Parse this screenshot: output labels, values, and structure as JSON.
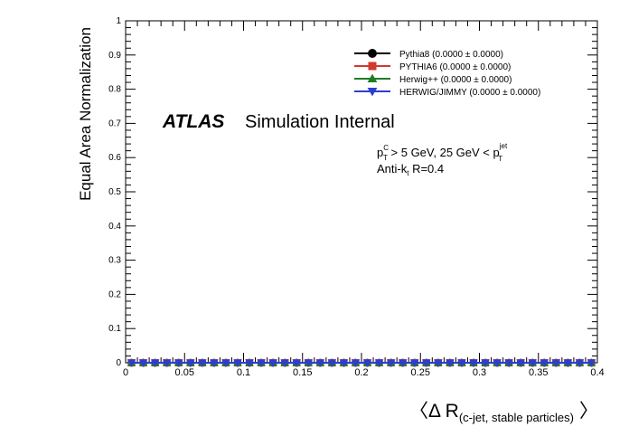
{
  "chart_data": {
    "type": "line",
    "title": "",
    "xlabel_main": "〈Δ R",
    "xlabel_sub": "(c-jet, stable particles)",
    "xlabel_close": "〉",
    "ylabel": "Equal Area Normalization",
    "xlim": [
      0,
      0.4
    ],
    "ylim": [
      0,
      1
    ],
    "x_ticks": [
      0,
      0.05,
      0.1,
      0.15,
      0.2,
      0.25,
      0.3,
      0.35,
      0.4
    ],
    "x_tick_labels": [
      "0",
      "0.05",
      "0.1",
      "0.15",
      "0.2",
      "0.25",
      "0.3",
      "0.35",
      "0.4"
    ],
    "y_ticks": [
      0,
      0.1,
      0.2,
      0.3,
      0.4,
      0.5,
      0.6,
      0.7,
      0.8,
      0.9,
      1
    ],
    "y_tick_labels": [
      "0",
      "0.1",
      "0.2",
      "0.3",
      "0.4",
      "0.5",
      "0.6",
      "0.7",
      "0.8",
      "0.9",
      "1"
    ],
    "grid": false,
    "legend_position": "top-right",
    "x": [
      0.0,
      0.01,
      0.02,
      0.03,
      0.04,
      0.05,
      0.06,
      0.07,
      0.08,
      0.09,
      0.1,
      0.11,
      0.12,
      0.13,
      0.14,
      0.15,
      0.16,
      0.17,
      0.18,
      0.19,
      0.2,
      0.21,
      0.22,
      0.23,
      0.24,
      0.25,
      0.26,
      0.27,
      0.28,
      0.29,
      0.3,
      0.31,
      0.32,
      0.33,
      0.34,
      0.35,
      0.36,
      0.37,
      0.38,
      0.39
    ],
    "series": [
      {
        "name": "Pythia8 (0.0000 ± 0.0000)",
        "color": "#000000",
        "marker": "circle",
        "values": [
          0,
          0,
          0,
          0,
          0,
          0,
          0,
          0,
          0,
          0,
          0,
          0,
          0,
          0,
          0,
          0,
          0,
          0,
          0,
          0,
          0,
          0,
          0,
          0,
          0,
          0,
          0,
          0,
          0,
          0,
          0,
          0,
          0,
          0,
          0,
          0,
          0,
          0,
          0,
          0
        ]
      },
      {
        "name": "PYTHIA6 (0.0000 ± 0.0000)",
        "color": "#d03a2e",
        "marker": "square",
        "values": [
          0,
          0,
          0,
          0,
          0,
          0,
          0,
          0,
          0,
          0,
          0,
          0,
          0,
          0,
          0,
          0,
          0,
          0,
          0,
          0,
          0,
          0,
          0,
          0,
          0,
          0,
          0,
          0,
          0,
          0,
          0,
          0,
          0,
          0,
          0,
          0,
          0,
          0,
          0,
          0
        ]
      },
      {
        "name": "Herwig++ (0.0000 ± 0.0000)",
        "color": "#1e7d22",
        "marker": "triangle-up",
        "values": [
          0,
          0,
          0,
          0,
          0,
          0,
          0,
          0,
          0,
          0,
          0,
          0,
          0,
          0,
          0,
          0,
          0,
          0,
          0,
          0,
          0,
          0,
          0,
          0,
          0,
          0,
          0,
          0,
          0,
          0,
          0,
          0,
          0,
          0,
          0,
          0,
          0,
          0,
          0,
          0
        ]
      },
      {
        "name": "HERWIG/JIMMY (0.0000 ± 0.0000)",
        "color": "#2c3ed1",
        "marker": "triangle-down",
        "values": [
          0,
          0,
          0,
          0,
          0,
          0,
          0,
          0,
          0,
          0,
          0,
          0,
          0,
          0,
          0,
          0,
          0,
          0,
          0,
          0,
          0,
          0,
          0,
          0,
          0,
          0,
          0,
          0,
          0,
          0,
          0,
          0,
          0,
          0,
          0,
          0,
          0,
          0,
          0,
          0
        ]
      }
    ],
    "annotations": {
      "atlas": "ATLAS",
      "atlas_status": "Simulation Internal",
      "cut_p": "p",
      "cut_C": "C",
      "cut_T": "T",
      "cut_mid": " > 5 GeV, 25 GeV < p",
      "cut_jet": "jet",
      "cut_T2": "T",
      "algo_a": "Anti-k",
      "algo_t": "t",
      "algo_b": " R=0.4"
    }
  }
}
